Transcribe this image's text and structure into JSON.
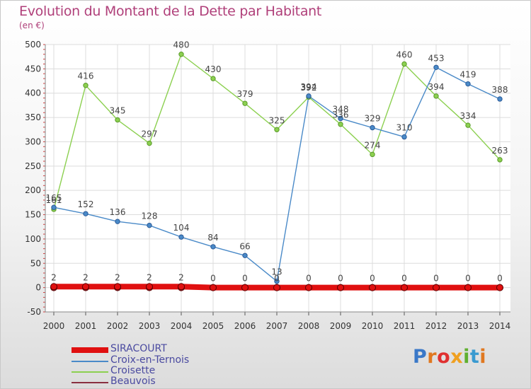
{
  "header": {
    "title": "Evolution du Montant de la Dette par Habitant",
    "subtitle": "(en €)"
  },
  "chart_data": {
    "type": "line",
    "title": "Evolution du Montant de la Dette par Habitant",
    "subtitle": "(en €)",
    "xlabel": "",
    "ylabel": "",
    "x": [
      2000,
      2001,
      2002,
      2003,
      2004,
      2005,
      2006,
      2007,
      2008,
      2009,
      2010,
      2011,
      2012,
      2013,
      2014
    ],
    "ylim": [
      -50,
      500
    ],
    "yticks": [
      -50,
      0,
      50,
      100,
      150,
      200,
      250,
      300,
      350,
      400,
      450,
      500
    ],
    "grid": true,
    "legend_position": "bottom-left",
    "series": [
      {
        "name": "SIRACOURT",
        "color": "#e01010",
        "values": [
          2,
          2,
          2,
          2,
          2,
          0,
          0,
          0,
          0,
          0,
          0,
          0,
          0,
          0,
          0
        ]
      },
      {
        "name": "Croix-en-Ternois",
        "color": "#4a8ac8",
        "values": [
          165,
          152,
          136,
          128,
          104,
          84,
          66,
          13,
          394,
          348,
          329,
          310,
          453,
          419,
          388
        ]
      },
      {
        "name": "Croisette",
        "color": "#8cd050",
        "values": [
          161,
          416,
          345,
          297,
          480,
          430,
          379,
          325,
          392,
          336,
          274,
          460,
          394,
          334,
          263
        ]
      },
      {
        "name": "Beauvois",
        "color": "#8a3040",
        "values": [
          0,
          0,
          0,
          0,
          0,
          0,
          0,
          0,
          0,
          0,
          0,
          0,
          0,
          0,
          0
        ]
      }
    ]
  },
  "legend": {
    "items": [
      "SIRACOURT",
      "Croix-en-Ternois",
      "Croisette",
      "Beauvois"
    ]
  },
  "logo": {
    "text": "Proxiti"
  }
}
